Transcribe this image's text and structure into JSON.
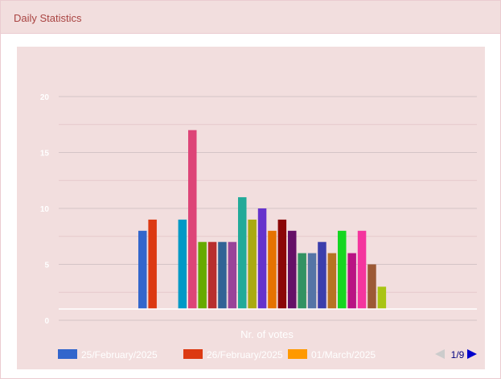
{
  "panel": {
    "title": "Daily Statistics"
  },
  "chart_data": {
    "type": "bar",
    "xlabel": "Nr. of votes",
    "ylim": [
      0,
      20
    ],
    "yticks": [
      0,
      5,
      10,
      15,
      20
    ],
    "grid": true,
    "legend": {
      "placement": "bottom",
      "page": "1/9"
    },
    "bars": [
      {
        "name": "25/February/2025",
        "value": 8,
        "color": "#3366cc"
      },
      {
        "name": "26/February/2025",
        "value": 9,
        "color": "#dc3912"
      },
      {
        "name": "01/March/2025",
        "value": 0,
        "color": "#ff9900"
      },
      {
        "name": "",
        "value": 0,
        "color": "#109618"
      },
      {
        "name": "",
        "value": 9,
        "color": "#0099c6"
      },
      {
        "name": "",
        "value": 17,
        "color": "#dd4477"
      },
      {
        "name": "",
        "value": 7,
        "color": "#66aa00"
      },
      {
        "name": "",
        "value": 7,
        "color": "#b82e2e"
      },
      {
        "name": "",
        "value": 7,
        "color": "#316395"
      },
      {
        "name": "",
        "value": 7,
        "color": "#994499"
      },
      {
        "name": "",
        "value": 11,
        "color": "#22aa99"
      },
      {
        "name": "",
        "value": 9,
        "color": "#aaaa11"
      },
      {
        "name": "",
        "value": 10,
        "color": "#6633cc"
      },
      {
        "name": "",
        "value": 8,
        "color": "#e67300"
      },
      {
        "name": "",
        "value": 9,
        "color": "#8b0707"
      },
      {
        "name": "",
        "value": 8,
        "color": "#651067"
      },
      {
        "name": "",
        "value": 6,
        "color": "#329262"
      },
      {
        "name": "",
        "value": 6,
        "color": "#5574a6"
      },
      {
        "name": "",
        "value": 7,
        "color": "#3b3eac"
      },
      {
        "name": "",
        "value": 6,
        "color": "#b77322"
      },
      {
        "name": "",
        "value": 8,
        "color": "#16d620"
      },
      {
        "name": "",
        "value": 6,
        "color": "#b91383"
      },
      {
        "name": "",
        "value": 8,
        "color": "#f4359e"
      },
      {
        "name": "",
        "value": 5,
        "color": "#9c5935"
      },
      {
        "name": "",
        "value": 3,
        "color": "#a9c413"
      }
    ]
  }
}
